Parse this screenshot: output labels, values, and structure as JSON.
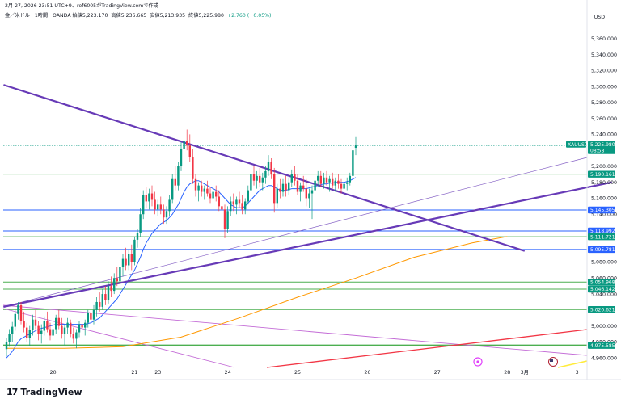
{
  "header": {
    "top_line": "2月 27, 2026 23:51 UTC+9、ref6005がTradingView.comで作成",
    "symbol_line": "金／米ドル · 1時間 · OANDA",
    "open_label": "始値",
    "open": "5,223.170",
    "high_label": "高値",
    "high": "5,236.665",
    "low_label": "安値",
    "low": "5,213.935",
    "close_label": "終値",
    "close": "5,225.980",
    "change": "+2.760 (+0.05%)"
  },
  "currency": "USD",
  "brand": {
    "logo": "17",
    "name": "TradingView"
  },
  "colors": {
    "up": "#089981",
    "down": "#f23645",
    "trend": "#673ab7",
    "ma_fast": "#2962ff",
    "ma_slow": "#ff9800",
    "horizontal_green": "#4caf50",
    "horizontal_blue": "#2962ff",
    "red_line": "#f23645",
    "yellow_line": "#ffeb3b"
  },
  "chart_data": {
    "type": "candlestick",
    "symbol": "XAUUSD",
    "timeframe": "1時間",
    "y_axis": {
      "ylim": [
        4948,
        5378
      ],
      "ticks": [
        5360,
        5340,
        5320,
        5300,
        5280,
        5260,
        5240,
        5200,
        5180,
        5160,
        5140,
        5080,
        5060,
        5040,
        5000,
        4980,
        4960
      ],
      "tick_labels": [
        "5,360.000",
        "5,340.000",
        "5,320.000",
        "5,300.000",
        "5,280.000",
        "5,260.000",
        "5,240.000",
        "5,200.000",
        "5,180.000",
        "5,160.000",
        "5,140.000",
        "5,080.000",
        "5,060.000",
        "5,040.000",
        "5,000.000",
        "4,980.000",
        "4,960.000"
      ]
    },
    "x_axis": {
      "ticks": [
        {
          "label": "20",
          "bar": 16
        },
        {
          "label": "21",
          "bar": 44
        },
        {
          "label": "23",
          "bar": 52
        },
        {
          "label": "24",
          "bar": 76
        },
        {
          "label": "25",
          "bar": 100
        },
        {
          "label": "26",
          "bar": 124
        },
        {
          "label": "27",
          "bar": 148
        },
        {
          "label": "28",
          "bar": 172
        },
        {
          "label": "3月",
          "bar": 178
        },
        {
          "label": "3",
          "bar": 196
        }
      ]
    },
    "last_price_tag": {
      "symbol": "XAUUSD",
      "price": "5,225.980",
      "countdown": "08:58",
      "value": 5225.98
    },
    "price_levels": [
      {
        "value": 5190.161,
        "label": "5,190.161",
        "color": "#089981"
      },
      {
        "value": 5145.305,
        "label": "5,145.305",
        "color": "#2962ff"
      },
      {
        "value": 5118.992,
        "label": "5,118.992",
        "color": "#2962ff"
      },
      {
        "value": 5111.721,
        "label": "5,111.721",
        "color": "#089981"
      },
      {
        "value": 5095.781,
        "label": "5,095.781",
        "color": "#2962ff"
      },
      {
        "value": 5054.968,
        "label": "5,054.968",
        "color": "#089981"
      },
      {
        "value": 5046.142,
        "label": "5,046.142",
        "color": "#089981"
      },
      {
        "value": 5020.621,
        "label": "5,020.621",
        "color": "#089981"
      },
      {
        "value": 4975.585,
        "label": "4,975.585",
        "color": "#089981"
      }
    ],
    "trend_lines": [
      {
        "name": "descending-resistance",
        "points": [
          [
            -1,
            5302
          ],
          [
            178,
            5094
          ]
        ],
        "note": ""
      },
      {
        "name": "ascending-support",
        "points": [
          [
            -1,
            5024
          ],
          [
            208,
            5180
          ]
        ]
      }
    ],
    "candles": [
      [
        4971,
        4985,
        4962,
        4980
      ],
      [
        4980,
        4996,
        4974,
        4990
      ],
      [
        4990,
        5005,
        4980,
        4999
      ],
      [
        4999,
        5022,
        4994,
        5015
      ],
      [
        5015,
        5030,
        5008,
        5026
      ],
      [
        5026,
        5030,
        5002,
        5006
      ],
      [
        5006,
        5018,
        4992,
        4998
      ],
      [
        4998,
        5004,
        4980,
        4985
      ],
      [
        4985,
        5000,
        4975,
        4995
      ],
      [
        4995,
        5014,
        4988,
        5008
      ],
      [
        5008,
        5020,
        4996,
        5000
      ],
      [
        5000,
        5006,
        4982,
        4990
      ],
      [
        4990,
        5002,
        4978,
        4994
      ],
      [
        4994,
        5012,
        4988,
        5006
      ],
      [
        5006,
        5018,
        4992,
        4996
      ],
      [
        4996,
        5004,
        4982,
        4988
      ],
      [
        4988,
        5000,
        4978,
        4996
      ],
      [
        4996,
        5014,
        4990,
        5010
      ],
      [
        5010,
        5020,
        4996,
        5000
      ],
      [
        5000,
        5010,
        4984,
        4990
      ],
      [
        4990,
        5002,
        4976,
        4998
      ],
      [
        4998,
        5010,
        4990,
        5004
      ],
      [
        5004,
        5008,
        4986,
        4990
      ],
      [
        4990,
        4998,
        4978,
        4984
      ],
      [
        4984,
        4996,
        4972,
        4992
      ],
      [
        4992,
        5006,
        4986,
        5002
      ],
      [
        5002,
        5012,
        4994,
        4998
      ],
      [
        4998,
        5008,
        4988,
        5004
      ],
      [
        5004,
        5020,
        4998,
        5016
      ],
      [
        5016,
        5024,
        5004,
        5008
      ],
      [
        5008,
        5026,
        5002,
        5020
      ],
      [
        5020,
        5036,
        5012,
        5030
      ],
      [
        5030,
        5042,
        5018,
        5024
      ],
      [
        5024,
        5046,
        5020,
        5040
      ],
      [
        5040,
        5050,
        5026,
        5032
      ],
      [
        5032,
        5056,
        5028,
        5050
      ],
      [
        5050,
        5062,
        5036,
        5044
      ],
      [
        5044,
        5066,
        5040,
        5060
      ],
      [
        5060,
        5074,
        5050,
        5056
      ],
      [
        5056,
        5080,
        5052,
        5074
      ],
      [
        5074,
        5090,
        5062,
        5084
      ],
      [
        5084,
        5098,
        5070,
        5076
      ],
      [
        5076,
        5096,
        5070,
        5090
      ],
      [
        5090,
        5102,
        5070,
        5080
      ],
      [
        5080,
        5112,
        5076,
        5108
      ],
      [
        5108,
        5122,
        5098,
        5116
      ],
      [
        5116,
        5148,
        5112,
        5140
      ],
      [
        5140,
        5170,
        5134,
        5164
      ],
      [
        5164,
        5174,
        5148,
        5156
      ],
      [
        5156,
        5172,
        5146,
        5166
      ],
      [
        5166,
        5176,
        5150,
        5158
      ],
      [
        5158,
        5168,
        5140,
        5146
      ],
      [
        5146,
        5158,
        5138,
        5152
      ],
      [
        5152,
        5162,
        5140,
        5146
      ],
      [
        5146,
        5152,
        5128,
        5136
      ],
      [
        5136,
        5150,
        5128,
        5144
      ],
      [
        5144,
        5164,
        5138,
        5158
      ],
      [
        5158,
        5190,
        5154,
        5184
      ],
      [
        5184,
        5200,
        5170,
        5176
      ],
      [
        5176,
        5206,
        5170,
        5200
      ],
      [
        5200,
        5230,
        5194,
        5222
      ],
      [
        5222,
        5240,
        5210,
        5232
      ],
      [
        5232,
        5246,
        5220,
        5226
      ],
      [
        5226,
        5240,
        5206,
        5212
      ],
      [
        5212,
        5222,
        5178,
        5184
      ],
      [
        5184,
        5190,
        5162,
        5170
      ],
      [
        5170,
        5180,
        5156,
        5176
      ],
      [
        5176,
        5182,
        5162,
        5168
      ],
      [
        5168,
        5176,
        5158,
        5172
      ],
      [
        5172,
        5182,
        5162,
        5166
      ],
      [
        5166,
        5174,
        5154,
        5160
      ],
      [
        5160,
        5172,
        5154,
        5168
      ],
      [
        5168,
        5176,
        5156,
        5162
      ],
      [
        5162,
        5170,
        5144,
        5150
      ],
      [
        5150,
        5160,
        5136,
        5146
      ],
      [
        5146,
        5152,
        5110,
        5122
      ],
      [
        5122,
        5150,
        5116,
        5144
      ],
      [
        5144,
        5162,
        5138,
        5156
      ],
      [
        5156,
        5166,
        5144,
        5152
      ],
      [
        5152,
        5162,
        5140,
        5158
      ],
      [
        5158,
        5168,
        5148,
        5154
      ],
      [
        5154,
        5164,
        5140,
        5146
      ],
      [
        5146,
        5160,
        5140,
        5156
      ],
      [
        5156,
        5176,
        5152,
        5170
      ],
      [
        5170,
        5196,
        5166,
        5190
      ],
      [
        5190,
        5200,
        5176,
        5182
      ],
      [
        5182,
        5194,
        5172,
        5188
      ],
      [
        5188,
        5198,
        5174,
        5180
      ],
      [
        5180,
        5192,
        5170,
        5186
      ],
      [
        5186,
        5200,
        5178,
        5194
      ],
      [
        5194,
        5214,
        5188,
        5206
      ],
      [
        5206,
        5210,
        5184,
        5190
      ],
      [
        5190,
        5198,
        5142,
        5154
      ],
      [
        5154,
        5178,
        5148,
        5172
      ],
      [
        5172,
        5184,
        5160,
        5168
      ],
      [
        5168,
        5184,
        5162,
        5178
      ],
      [
        5178,
        5188,
        5162,
        5170
      ],
      [
        5170,
        5186,
        5164,
        5180
      ],
      [
        5180,
        5196,
        5174,
        5190
      ],
      [
        5190,
        5200,
        5176,
        5182
      ],
      [
        5182,
        5190,
        5164,
        5168
      ],
      [
        5168,
        5180,
        5156,
        5176
      ],
      [
        5176,
        5188,
        5168,
        5172
      ],
      [
        5172,
        5184,
        5150,
        5160
      ],
      [
        5160,
        5172,
        5148,
        5166
      ],
      [
        5166,
        5176,
        5134,
        5170
      ],
      [
        5170,
        5186,
        5166,
        5182
      ],
      [
        5182,
        5194,
        5174,
        5188
      ],
      [
        5188,
        5194,
        5174,
        5178
      ],
      [
        5178,
        5192,
        5172,
        5186
      ],
      [
        5186,
        5194,
        5176,
        5180
      ],
      [
        5180,
        5188,
        5168,
        5184
      ],
      [
        5184,
        5192,
        5172,
        5176
      ],
      [
        5176,
        5186,
        5168,
        5182
      ],
      [
        5182,
        5190,
        5172,
        5178
      ],
      [
        5178,
        5184,
        5166,
        5172
      ],
      [
        5172,
        5182,
        5166,
        5178
      ],
      [
        5178,
        5186,
        5170,
        5180
      ],
      [
        5180,
        5192,
        5176,
        5188
      ],
      [
        5188,
        5224,
        5184,
        5220
      ],
      [
        5223.17,
        5236.665,
        5213.935,
        5225.98
      ]
    ],
    "ma_fast": [
      4960,
      4964,
      4968,
      4974,
      4980,
      4984,
      4986,
      4988,
      4990,
      4992,
      4994,
      4996,
      4997,
      4998,
      4999,
      5000,
      5001,
      5002,
      5002,
      5002,
      5002,
      5002,
      5002,
      5002,
      5002,
      5002,
      5002,
      5002,
      5003,
      5004,
      5006,
      5008,
      5010,
      5014,
      5018,
      5022,
      5026,
      5030,
      5034,
      5040,
      5046,
      5052,
      5058,
      5064,
      5070,
      5078,
      5086,
      5096,
      5104,
      5110,
      5116,
      5120,
      5124,
      5128,
      5130,
      5132,
      5136,
      5140,
      5146,
      5152,
      5160,
      5168,
      5174,
      5178,
      5180,
      5182,
      5182,
      5180,
      5178,
      5176,
      5174,
      5172,
      5170,
      5168,
      5164,
      5160,
      5156,
      5152,
      5150,
      5148,
      5148,
      5148,
      5150,
      5154,
      5158,
      5162,
      5166,
      5170,
      5172,
      5174,
      5176,
      5176,
      5174,
      5172,
      5170,
      5170,
      5170,
      5171,
      5172,
      5172,
      5172,
      5172,
      5172,
      5172,
      5173,
      5174,
      5175,
      5176,
      5177,
      5178,
      5178,
      5179,
      5179,
      5180,
      5180,
      5180,
      5180,
      5181,
      5182,
      5184,
      5186
    ],
    "ma_slow_points": [
      [
        0,
        4972
      ],
      [
        20,
        4972
      ],
      [
        40,
        4974
      ],
      [
        60,
        4986
      ],
      [
        80,
        5010
      ],
      [
        100,
        5036
      ],
      [
        120,
        5060
      ],
      [
        140,
        5086
      ],
      [
        160,
        5104
      ],
      [
        172,
        5112
      ]
    ]
  }
}
